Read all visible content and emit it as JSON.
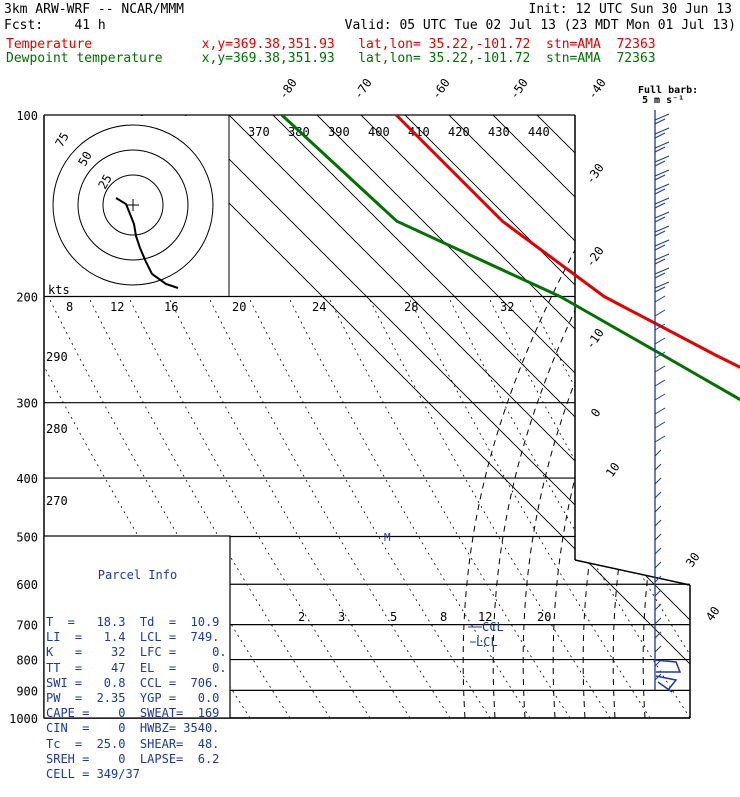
{
  "header": {
    "line1_left": "3km ARW-WRF -- NCAR/MMM",
    "line1_right": "Init: 12 UTC Sun 30 Jun 13",
    "line2_left": "Fcst:    41 h",
    "line2_right": "Valid: 05 UTC Tue 02 Jul 13 (23 MDT Mon 01 Jul 13)",
    "line3": "Temperature              x,y=369.38,351.93   lat,lon= 35.22,-101.72  stn=AMA  72363",
    "line4": "Dewpoint temperature     x,y=369.38,351.93   lat,lon= 35.22,-101.72  stn=AMA  72363"
  },
  "colors": {
    "temperature": "#e00000",
    "dewpoint": "#007000",
    "isotherm": "#000000",
    "parcel": "#1a3aa0",
    "wind": "#1a3aa0"
  },
  "wind_barb_label": {
    "line1": "Full barb:",
    "line2": "5 m s⁻¹"
  },
  "hodograph": {
    "rings": [
      "75",
      "50",
      "25"
    ],
    "unit": "kts"
  },
  "chart_data": {
    "type": "line",
    "title": "",
    "pressure_levels": [
      100,
      200,
      300,
      400,
      500,
      600,
      700,
      800,
      900,
      1000
    ],
    "isotherm_labels": [
      -80,
      -70,
      -60,
      -50,
      -40,
      -30,
      -20,
      -10,
      0,
      10,
      30,
      40
    ],
    "theta_labels": [
      370,
      380,
      390,
      400,
      410,
      420,
      430,
      440
    ],
    "mixing_ratio_top": [
      8,
      12,
      16,
      20,
      24,
      28,
      32
    ],
    "mixing_ratio_bottom": [
      2,
      3,
      5,
      8,
      12,
      20
    ],
    "thetae_labels": [
      290,
      280,
      270
    ],
    "series": [
      {
        "name": "Temperature",
        "points": [
          {
            "p": 100,
            "t": -62
          },
          {
            "p": 150,
            "t": -62
          },
          {
            "p": 200,
            "t": -56
          },
          {
            "p": 250,
            "t": -44
          },
          {
            "p": 300,
            "t": -33
          },
          {
            "p": 400,
            "t": -18
          },
          {
            "p": 500,
            "t": -8
          },
          {
            "p": 600,
            "t": 1
          },
          {
            "p": 700,
            "t": 8
          },
          {
            "p": 800,
            "t": 14
          },
          {
            "p": 870,
            "t": 20
          },
          {
            "p": 885,
            "t": 20.5
          }
        ]
      },
      {
        "name": "Dewpoint temperature",
        "points": [
          {
            "p": 100,
            "t": -88
          },
          {
            "p": 150,
            "t": -86
          },
          {
            "p": 200,
            "t": -66
          },
          {
            "p": 250,
            "t": -56
          },
          {
            "p": 300,
            "t": -48
          },
          {
            "p": 400,
            "t": -34
          },
          {
            "p": 500,
            "t": -12
          },
          {
            "p": 560,
            "t": -9
          },
          {
            "p": 600,
            "t": -8
          },
          {
            "p": 700,
            "t": 4
          },
          {
            "p": 800,
            "t": 8
          },
          {
            "p": 885,
            "t": 11
          }
        ]
      }
    ],
    "markers": [
      "M",
      "CCL",
      "LCL"
    ],
    "wind_speed_labels": [
      30,
      40
    ]
  },
  "parcel_info": {
    "title": "Parcel Info",
    "rows": [
      "T  =   18.3  Td  =  10.9",
      "LI  =   1.4  LCL =  749.",
      "K   =    32  LFC =     0.",
      "TT  =    47  EL  =     0.",
      "SWI =   0.8  CCL =  706.",
      "PW  =  2.35  YGP =   0.0",
      "CAPE =    0  SWEAT=  169",
      "CIN  =    0  HWBZ= 3540.",
      "Tc  =  25.0  SHEAR=  48.",
      "SREH =    0  LAPSE=  6.2",
      "CELL = 349/37"
    ]
  }
}
